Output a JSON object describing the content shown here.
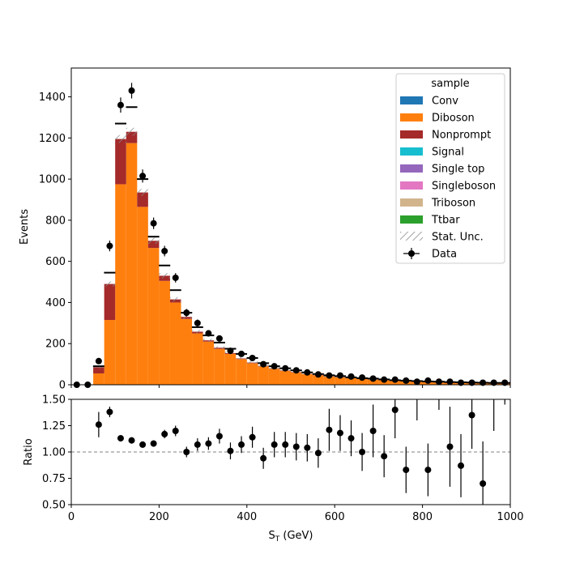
{
  "chart_data": [
    {
      "type": "bar",
      "subtype": "stacked-histogram",
      "xlabel": "",
      "ylabel": "Events",
      "xlim": [
        0,
        1000
      ],
      "ylim": [
        0,
        1540
      ],
      "yticks": [
        0,
        200,
        400,
        600,
        800,
        1000,
        1200,
        1400
      ],
      "xticks": [
        0,
        200,
        400,
        600,
        800,
        1000
      ],
      "bin_width": 25,
      "bin_edges_start": [
        0,
        25,
        50,
        75,
        100,
        125,
        150,
        175,
        200,
        225,
        250,
        275,
        300,
        325,
        350,
        375,
        400,
        425,
        450,
        475,
        500,
        525,
        550,
        575,
        600,
        625,
        650,
        675,
        700,
        725,
        750,
        775,
        800,
        825,
        850,
        875,
        900,
        925,
        950,
        975
      ],
      "series": [
        {
          "name": "Diboson",
          "values": [
            0,
            0,
            55,
            315,
            975,
            1175,
            865,
            665,
            505,
            400,
            320,
            250,
            210,
            175,
            150,
            125,
            105,
            90,
            78,
            68,
            60,
            52,
            46,
            40,
            36,
            32,
            28,
            25,
            22,
            20,
            18,
            16,
            14,
            13,
            12,
            11,
            10,
            9,
            8,
            8
          ]
        },
        {
          "name": "Nonprompt",
          "values": [
            0,
            0,
            30,
            175,
            220,
            55,
            70,
            35,
            25,
            15,
            10,
            8,
            6,
            5,
            4,
            3,
            3,
            2,
            2,
            2,
            2,
            1,
            1,
            1,
            1,
            1,
            1,
            1,
            1,
            0,
            0,
            0,
            0,
            0,
            0,
            0,
            0,
            0,
            0,
            0
          ]
        }
      ],
      "prediction_line": [
        0,
        0,
        90,
        545,
        1270,
        1350,
        1000,
        720,
        580,
        460,
        350,
        280,
        240,
        205,
        175,
        150,
        130,
        105,
        90,
        80,
        70,
        60,
        52,
        46,
        42,
        36,
        32,
        30,
        26,
        22,
        20,
        18,
        16,
        15,
        13,
        12,
        11,
        10,
        9,
        9
      ],
      "data_points": [
        0,
        0,
        115,
        675,
        1360,
        1430,
        1015,
        785,
        650,
        520,
        350,
        300,
        250,
        225,
        165,
        150,
        130,
        100,
        90,
        80,
        70,
        60,
        50,
        45,
        45,
        40,
        35,
        30,
        25,
        25,
        20,
        15,
        20,
        15,
        15,
        10,
        10,
        10,
        10,
        10
      ],
      "legend": {
        "title": "sample",
        "position": "top-right",
        "entries": [
          "Conv",
          "Diboson",
          "Nonprompt",
          "Signal",
          "Single top",
          "Singleboson",
          "Triboson",
          "Ttbar",
          "Stat. Unc.",
          "Data"
        ]
      },
      "colors": {
        "Conv": "#1f77b4",
        "Diboson": "#ff7f0e",
        "Nonprompt": "#a52a2a",
        "Signal": "#17becf",
        "Single top": "#9467bd",
        "Singleboson": "#e377c2",
        "Triboson": "#d2b48c",
        "Ttbar": "#2ca02c",
        "Stat. Unc.": "#888888",
        "Data": "#000000"
      }
    },
    {
      "type": "scatter",
      "subtype": "ratio-with-errorbars",
      "xlabel": "S$_T$ (GeV)",
      "ylabel": "Ratio",
      "xlim": [
        0,
        1000
      ],
      "ylim": [
        0.5,
        1.5
      ],
      "yticks": [
        0.5,
        0.75,
        1.0,
        1.25,
        1.5
      ],
      "xticks": [
        0,
        200,
        400,
        600,
        800,
        1000
      ],
      "reference_line": 1.0,
      "x": [
        62.5,
        87.5,
        112.5,
        137.5,
        162.5,
        187.5,
        212.5,
        237.5,
        262.5,
        287.5,
        312.5,
        337.5,
        362.5,
        387.5,
        412.5,
        437.5,
        462.5,
        487.5,
        512.5,
        537.5,
        562.5,
        587.5,
        612.5,
        637.5,
        662.5,
        687.5,
        712.5,
        737.5,
        762.5,
        812.5,
        862.5,
        887.5,
        912.5,
        937.5
      ],
      "y": [
        1.26,
        1.38,
        1.13,
        1.11,
        1.07,
        1.08,
        1.17,
        1.2,
        1.0,
        1.07,
        1.08,
        1.15,
        1.01,
        1.07,
        1.14,
        0.94,
        1.07,
        1.07,
        1.05,
        1.04,
        0.99,
        1.21,
        1.18,
        1.13,
        1.0,
        1.2,
        0.96,
        1.4,
        0.83,
        0.83,
        1.05,
        0.87,
        1.35,
        0.7
      ],
      "err": [
        0.12,
        0.05,
        0.03,
        0.03,
        0.03,
        0.03,
        0.04,
        0.05,
        0.05,
        0.06,
        0.06,
        0.07,
        0.08,
        0.08,
        0.1,
        0.1,
        0.12,
        0.12,
        0.13,
        0.13,
        0.14,
        0.2,
        0.17,
        0.17,
        0.18,
        0.25,
        0.2,
        0.27,
        0.22,
        0.25,
        0.38,
        0.3,
        0.32,
        0.4
      ],
      "offscale_bars": [
        {
          "x": 787.5,
          "lo": 1.3
        },
        {
          "x": 837.5,
          "lo": 1.4
        },
        {
          "x": 962.5,
          "lo": 1.2
        },
        {
          "x": 987.5,
          "lo": 1.45
        }
      ]
    }
  ],
  "labels": {
    "ylabel_top": "Events",
    "ylabel_bottom": "Ratio",
    "xlabel_main": "S",
    "xlabel_sub": "T",
    "xlabel_unit": " (GeV)",
    "legend_title": "sample"
  }
}
